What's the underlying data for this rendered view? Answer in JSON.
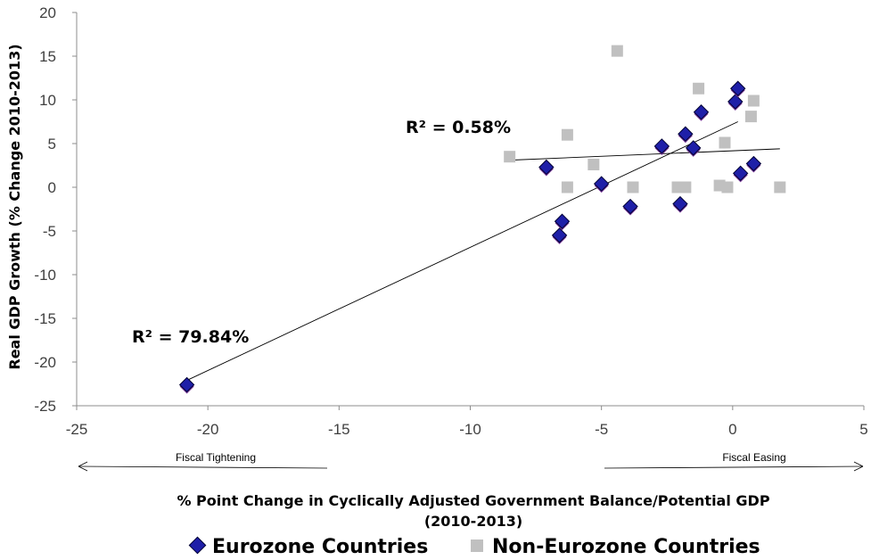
{
  "chart_data": {
    "type": "scatter",
    "title": "",
    "xlabel_line1": "% Point Change in Cyclically Adjusted Government Balance/Potential GDP",
    "xlabel_line2": "(2010-2013)",
    "ylabel": "Real GDP Growth (% Change 2010-2013)",
    "xlim": [
      -25,
      5
    ],
    "ylim": [
      -25,
      20
    ],
    "xticks": [
      -25,
      -20,
      -15,
      -10,
      -5,
      0,
      5
    ],
    "yticks": [
      -25,
      -20,
      -15,
      -10,
      -5,
      0,
      5,
      10,
      15,
      20
    ],
    "grid": false,
    "legend_placement": "bottom",
    "series": [
      {
        "name": "Eurozone Countries",
        "color": "#1f1fa8",
        "marker": "diamond",
        "points": [
          [
            -20.8,
            -22.6
          ],
          [
            -7.1,
            2.3
          ],
          [
            -6.6,
            -5.5
          ],
          [
            -6.5,
            -3.9
          ],
          [
            -5.0,
            0.4
          ],
          [
            -3.9,
            -2.2
          ],
          [
            -2.7,
            4.7
          ],
          [
            -2.0,
            -1.9
          ],
          [
            -1.8,
            6.1
          ],
          [
            -1.5,
            4.5
          ],
          [
            -1.2,
            8.6
          ],
          [
            0.1,
            9.8
          ],
          [
            0.2,
            11.3
          ],
          [
            0.3,
            1.6
          ],
          [
            0.8,
            2.7
          ]
        ],
        "trendline": {
          "x": [
            -20.8,
            0.2
          ],
          "y": [
            -22.1,
            7.5
          ],
          "r2_label": "R² = 79.84%"
        }
      },
      {
        "name": "Non-Eurozone Countries",
        "color": "#c0c0c0",
        "marker": "square",
        "points": [
          [
            -8.5,
            3.5
          ],
          [
            -6.3,
            6.0
          ],
          [
            -6.3,
            0.0
          ],
          [
            -5.3,
            2.6
          ],
          [
            -4.4,
            15.6
          ],
          [
            -3.8,
            0.0
          ],
          [
            -2.1,
            0.0
          ],
          [
            -1.8,
            0.0
          ],
          [
            -1.3,
            11.3
          ],
          [
            -0.5,
            0.2
          ],
          [
            -0.3,
            5.1
          ],
          [
            -0.2,
            0.0
          ],
          [
            0.7,
            8.1
          ],
          [
            0.8,
            9.9
          ],
          [
            1.8,
            0.0
          ]
        ],
        "trendline": {
          "x": [
            -8.5,
            1.8
          ],
          "y": [
            3.1,
            4.4
          ],
          "r2_label": "R² = 0.58%"
        }
      }
    ],
    "annotations": {
      "left_arrow_label": "Fiscal Tightening",
      "right_arrow_label": "Fiscal Easing"
    }
  }
}
